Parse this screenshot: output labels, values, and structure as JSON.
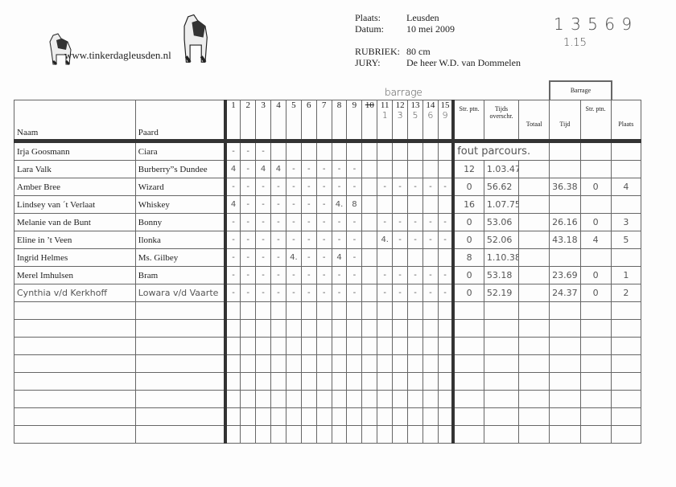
{
  "logo": {
    "url_text": "www.tinkerdagleusden.nl"
  },
  "info": {
    "plaats_label": "Plaats:",
    "plaats": "Leusden",
    "datum_label": "Datum:",
    "datum": "10 mei 2009",
    "rubriek_label": "RUBRIEK:",
    "rubriek": "80 cm",
    "jury_label": "JURY:",
    "jury": "De heer W.D. van Dommelen"
  },
  "handwritten_top": {
    "line1": "1 3 5 6 9",
    "line2": "1.15",
    "barrage_note": "barrage"
  },
  "barrage_header": "Barrage",
  "columns": {
    "naam": "Naam",
    "paard": "Paard",
    "obstacles": [
      "1",
      "2",
      "3",
      "4",
      "5",
      "6",
      "7",
      "8",
      "9",
      "10",
      "11",
      "12",
      "13",
      "14",
      "15"
    ],
    "barrage_obstacles": {
      "11": "1",
      "12": "3",
      "13": "5",
      "14": "6",
      "15": "9"
    },
    "str_ptn": "Str. ptn.",
    "tijds": "Tijds overschr.",
    "totaal": "Totaal",
    "tijd": "Tijd",
    "str_ptn2": "Str. ptn.",
    "plaats": "Plaats"
  },
  "rows": [
    {
      "naam": "Irja Goosmann",
      "paard": "Ciara",
      "marks": [
        "-",
        "-",
        "-",
        "",
        "",
        "",
        "",
        "",
        "",
        "",
        "",
        "",
        "",
        "",
        ""
      ],
      "str": "fout parcours.",
      "tijds": "",
      "totaal": "",
      "tijd": "",
      "str2": "",
      "plaats": ""
    },
    {
      "naam": "Lara Valk",
      "paard": "Burberry”s Dundee",
      "marks": [
        "4",
        "-",
        "4",
        "4",
        "-",
        "-",
        "-",
        "-",
        "-",
        "",
        "",
        "",
        "",
        "",
        ""
      ],
      "str": "12",
      "tijds": "1.03.47",
      "totaal": "",
      "tijd": "",
      "str2": "",
      "plaats": ""
    },
    {
      "naam": "Amber Bree",
      "paard": "Wizard",
      "marks": [
        "-",
        "-",
        "-",
        "-",
        "-",
        "-",
        "-",
        "-",
        "-",
        "",
        "-",
        "-",
        "-",
        "-",
        "-"
      ],
      "str": "0",
      "tijds": "56.62",
      "totaal": "",
      "tijd": "36.38",
      "str2": "0",
      "plaats": "4"
    },
    {
      "naam": "Lindsey van ´t Verlaat",
      "paard": "Whiskey",
      "marks": [
        "4",
        "-",
        "-",
        "-",
        "-",
        "-",
        "-",
        "4.",
        "8",
        "",
        "",
        "",
        "",
        "",
        ""
      ],
      "str": "16",
      "tijds": "1.07.75",
      "totaal": "",
      "tijd": "",
      "str2": "",
      "plaats": ""
    },
    {
      "naam": "Melanie van de Bunt",
      "paard": "Bonny",
      "marks": [
        "-",
        "-",
        "-",
        "-",
        "-",
        "-",
        "-",
        "-",
        "-",
        "",
        "-",
        "-",
        "-",
        "-",
        "-"
      ],
      "str": "0",
      "tijds": "53.06",
      "totaal": "",
      "tijd": "26.16",
      "str2": "0",
      "plaats": "3"
    },
    {
      "naam": "Eline in ’t Veen",
      "paard": "Ilonka",
      "marks": [
        "-",
        "-",
        "-",
        "-",
        "-",
        "-",
        "-",
        "-",
        "-",
        "",
        "4.",
        "-",
        "-",
        "-",
        "-"
      ],
      "str": "0",
      "tijds": "52.06",
      "totaal": "",
      "tijd": "43.18",
      "str2": "4",
      "plaats": "5"
    },
    {
      "naam": "Ingrid Helmes",
      "paard": "Ms. Gilbey",
      "marks": [
        "-",
        "-",
        "-",
        "-",
        "4.",
        "-",
        "-",
        "4",
        "-",
        "",
        "",
        "",
        "",
        "",
        ""
      ],
      "str": "8",
      "tijds": "1.10.38",
      "totaal": "",
      "tijd": "",
      "str2": "",
      "plaats": ""
    },
    {
      "naam": "Merel Imhulsen",
      "paard": "Bram",
      "marks": [
        "-",
        "-",
        "-",
        "-",
        "-",
        "-",
        "-",
        "-",
        "-",
        "",
        "-",
        "-",
        "-",
        "-",
        "-"
      ],
      "str": "0",
      "tijds": "53.18",
      "totaal": "",
      "tijd": "23.69",
      "str2": "0",
      "plaats": "1"
    },
    {
      "naam": "Cynthia v/d Kerkhoff",
      "paard": "Lowara v/d Vaarte",
      "marks": [
        "-",
        "-",
        "-",
        "-",
        "-",
        "-",
        "-",
        "-",
        "-",
        "",
        "-",
        "-",
        "-",
        "-",
        "-"
      ],
      "str": "0",
      "tijds": "52.19",
      "totaal": "",
      "tijd": "24.37",
      "str2": "0",
      "plaats": "2"
    }
  ]
}
